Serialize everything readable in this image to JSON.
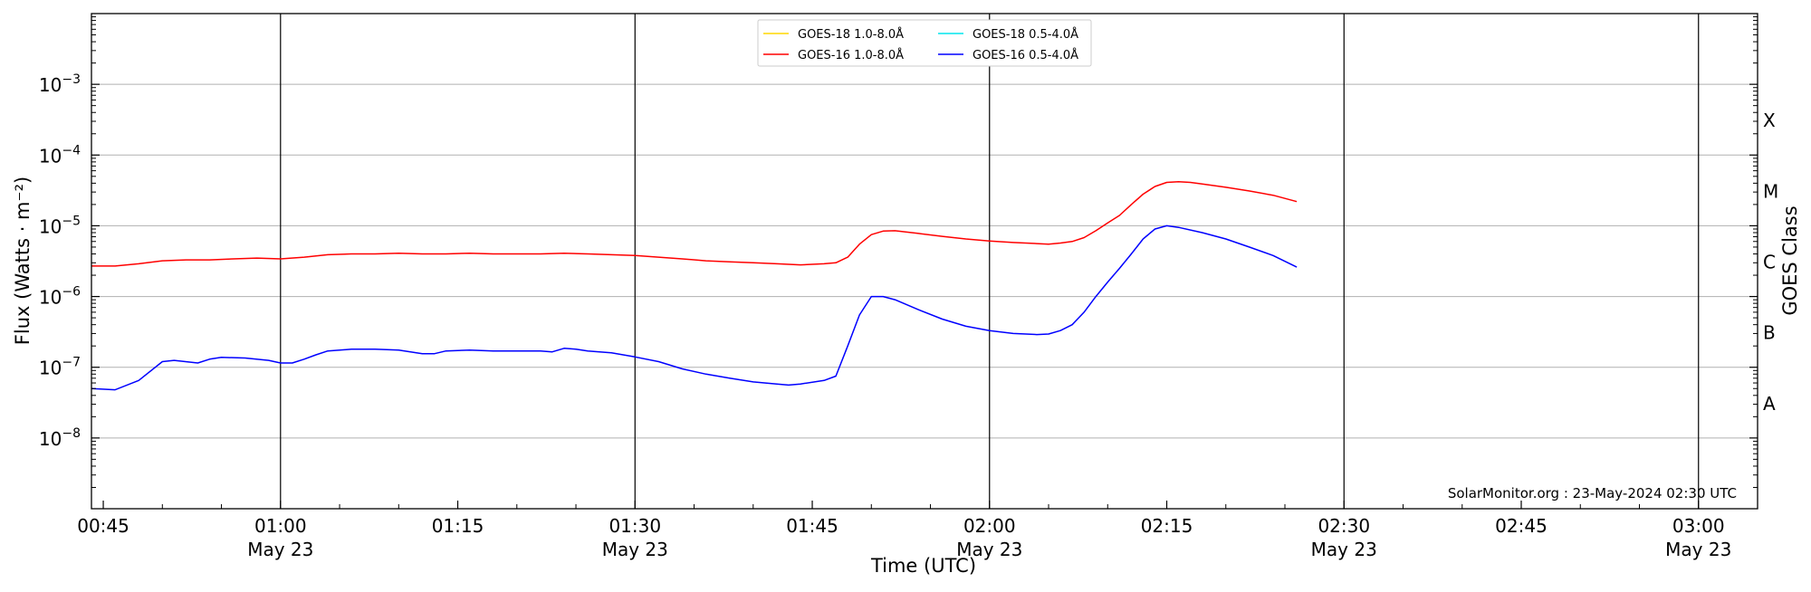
{
  "chart_data": {
    "type": "line",
    "xlabel": "Time (UTC)",
    "ylabel": "Flux (Watts · m⁻²)",
    "right_axis_label": "GOES Class",
    "x_range": [
      "00:44",
      "03:05"
    ],
    "ylim": [
      1e-09,
      0.01
    ],
    "y_scale": "log",
    "y_ticks": [
      {
        "value": 1e-08,
        "base": "10",
        "exp": "−8"
      },
      {
        "value": 1e-07,
        "base": "10",
        "exp": "−7"
      },
      {
        "value": 1e-06,
        "base": "10",
        "exp": "−6"
      },
      {
        "value": 1e-05,
        "base": "10",
        "exp": "−5"
      },
      {
        "value": 0.0001,
        "base": "10",
        "exp": "−4"
      },
      {
        "value": 0.001,
        "base": "10",
        "exp": "−3"
      }
    ],
    "x_ticks": [
      {
        "time": "00:45",
        "label": "00:45",
        "date": ""
      },
      {
        "time": "01:00",
        "label": "01:00",
        "date": "May 23"
      },
      {
        "time": "01:15",
        "label": "01:15",
        "date": ""
      },
      {
        "time": "01:30",
        "label": "01:30",
        "date": "May 23"
      },
      {
        "time": "01:45",
        "label": "01:45",
        "date": ""
      },
      {
        "time": "02:00",
        "label": "02:00",
        "date": "May 23"
      },
      {
        "time": "02:15",
        "label": "02:15",
        "date": ""
      },
      {
        "time": "02:30",
        "label": "02:30",
        "date": "May 23"
      },
      {
        "time": "02:45",
        "label": "02:45",
        "date": ""
      },
      {
        "time": "03:00",
        "label": "03:00",
        "date": "May 23"
      }
    ],
    "vertical_lines": [
      "01:00",
      "01:30",
      "02:00",
      "02:30",
      "03:00"
    ],
    "goes_classes": [
      {
        "label": "A",
        "value": 3.16e-08
      },
      {
        "label": "B",
        "value": 3.16e-07
      },
      {
        "label": "C",
        "value": 3.16e-06
      },
      {
        "label": "M",
        "value": 3.16e-05
      },
      {
        "label": "X",
        "value": 0.000316
      }
    ],
    "grid": true,
    "legend_position": "top-center",
    "series": [
      {
        "name": "GOES-18 1.0-8.0Å",
        "color": "#ffd700",
        "points": []
      },
      {
        "name": "GOES-18 0.5-4.0Å",
        "color": "#00e5ee",
        "points": []
      },
      {
        "name": "GOES-16 1.0-8.0Å",
        "color": "#ff0000",
        "points": [
          [
            "00:44",
            2.7e-06
          ],
          [
            "00:46",
            2.7e-06
          ],
          [
            "00:48",
            2.9e-06
          ],
          [
            "00:50",
            3.2e-06
          ],
          [
            "00:52",
            3.3e-06
          ],
          [
            "00:54",
            3.3e-06
          ],
          [
            "00:56",
            3.4e-06
          ],
          [
            "00:58",
            3.5e-06
          ],
          [
            "01:00",
            3.4e-06
          ],
          [
            "01:02",
            3.6e-06
          ],
          [
            "01:04",
            3.9e-06
          ],
          [
            "01:06",
            4e-06
          ],
          [
            "01:08",
            4e-06
          ],
          [
            "01:10",
            4.1e-06
          ],
          [
            "01:12",
            4e-06
          ],
          [
            "01:14",
            4e-06
          ],
          [
            "01:16",
            4.1e-06
          ],
          [
            "01:18",
            4e-06
          ],
          [
            "01:20",
            4e-06
          ],
          [
            "01:22",
            4e-06
          ],
          [
            "01:24",
            4.1e-06
          ],
          [
            "01:26",
            4e-06
          ],
          [
            "01:28",
            3.9e-06
          ],
          [
            "01:30",
            3.8e-06
          ],
          [
            "01:32",
            3.6e-06
          ],
          [
            "01:34",
            3.4e-06
          ],
          [
            "01:36",
            3.2e-06
          ],
          [
            "01:38",
            3.1e-06
          ],
          [
            "01:40",
            3e-06
          ],
          [
            "01:42",
            2.9e-06
          ],
          [
            "01:44",
            2.8e-06
          ],
          [
            "01:46",
            2.9e-06
          ],
          [
            "01:47",
            3e-06
          ],
          [
            "01:48",
            3.6e-06
          ],
          [
            "01:49",
            5.5e-06
          ],
          [
            "01:50",
            7.5e-06
          ],
          [
            "01:51",
            8.4e-06
          ],
          [
            "01:52",
            8.5e-06
          ],
          [
            "01:54",
            7.8e-06
          ],
          [
            "01:56",
            7.1e-06
          ],
          [
            "01:58",
            6.5e-06
          ],
          [
            "02:00",
            6.1e-06
          ],
          [
            "02:02",
            5.8e-06
          ],
          [
            "02:04",
            5.6e-06
          ],
          [
            "02:05",
            5.5e-06
          ],
          [
            "02:06",
            5.7e-06
          ],
          [
            "02:07",
            6e-06
          ],
          [
            "02:08",
            6.8e-06
          ],
          [
            "02:09",
            8.5e-06
          ],
          [
            "02:10",
            1.1e-05
          ],
          [
            "02:11",
            1.4e-05
          ],
          [
            "02:12",
            2e-05
          ],
          [
            "02:13",
            2.8e-05
          ],
          [
            "02:14",
            3.6e-05
          ],
          [
            "02:15",
            4.1e-05
          ],
          [
            "02:16",
            4.2e-05
          ],
          [
            "02:17",
            4.1e-05
          ],
          [
            "02:18",
            3.9e-05
          ],
          [
            "02:20",
            3.5e-05
          ],
          [
            "02:22",
            3.1e-05
          ],
          [
            "02:24",
            2.7e-05
          ],
          [
            "02:26",
            2.2e-05
          ]
        ]
      },
      {
        "name": "GOES-16 0.5-4.0Å",
        "color": "#0000ff",
        "points": [
          [
            "00:44",
            5e-08
          ],
          [
            "00:46",
            4.8e-08
          ],
          [
            "00:48",
            6.5e-08
          ],
          [
            "00:50",
            1.2e-07
          ],
          [
            "00:51",
            1.25e-07
          ],
          [
            "00:53",
            1.15e-07
          ],
          [
            "00:54",
            1.3e-07
          ],
          [
            "00:55",
            1.38e-07
          ],
          [
            "00:57",
            1.35e-07
          ],
          [
            "00:59",
            1.25e-07
          ],
          [
            "01:00",
            1.15e-07
          ],
          [
            "01:01",
            1.15e-07
          ],
          [
            "01:02",
            1.3e-07
          ],
          [
            "01:03",
            1.5e-07
          ],
          [
            "01:04",
            1.7e-07
          ],
          [
            "01:06",
            1.8e-07
          ],
          [
            "01:08",
            1.8e-07
          ],
          [
            "01:10",
            1.75e-07
          ],
          [
            "01:12",
            1.55e-07
          ],
          [
            "01:13",
            1.55e-07
          ],
          [
            "01:14",
            1.7e-07
          ],
          [
            "01:16",
            1.75e-07
          ],
          [
            "01:18",
            1.7e-07
          ],
          [
            "01:20",
            1.7e-07
          ],
          [
            "01:22",
            1.7e-07
          ],
          [
            "01:23",
            1.65e-07
          ],
          [
            "01:24",
            1.85e-07
          ],
          [
            "01:25",
            1.8e-07
          ],
          [
            "01:26",
            1.7e-07
          ],
          [
            "01:28",
            1.6e-07
          ],
          [
            "01:30",
            1.4e-07
          ],
          [
            "01:32",
            1.2e-07
          ],
          [
            "01:34",
            9.5e-08
          ],
          [
            "01:36",
            8e-08
          ],
          [
            "01:38",
            7e-08
          ],
          [
            "01:40",
            6.2e-08
          ],
          [
            "01:42",
            5.8e-08
          ],
          [
            "01:43",
            5.6e-08
          ],
          [
            "01:44",
            5.8e-08
          ],
          [
            "01:46",
            6.5e-08
          ],
          [
            "01:47",
            7.5e-08
          ],
          [
            "01:48",
            2e-07
          ],
          [
            "01:49",
            5.5e-07
          ],
          [
            "01:50",
            1e-06
          ],
          [
            "01:51",
            1e-06
          ],
          [
            "01:52",
            9e-07
          ],
          [
            "01:54",
            6.5e-07
          ],
          [
            "01:56",
            4.8e-07
          ],
          [
            "01:58",
            3.8e-07
          ],
          [
            "02:00",
            3.3e-07
          ],
          [
            "02:02",
            3e-07
          ],
          [
            "02:04",
            2.9e-07
          ],
          [
            "02:05",
            2.95e-07
          ],
          [
            "02:06",
            3.3e-07
          ],
          [
            "02:07",
            4e-07
          ],
          [
            "02:08",
            6e-07
          ],
          [
            "02:09",
            1e-06
          ],
          [
            "02:10",
            1.6e-06
          ],
          [
            "02:11",
            2.5e-06
          ],
          [
            "02:12",
            4e-06
          ],
          [
            "02:13",
            6.5e-06
          ],
          [
            "02:14",
            9e-06
          ],
          [
            "02:15",
            1e-05
          ],
          [
            "02:16",
            9.5e-06
          ],
          [
            "02:18",
            8e-06
          ],
          [
            "02:20",
            6.5e-06
          ],
          [
            "02:22",
            5e-06
          ],
          [
            "02:24",
            3.8e-06
          ],
          [
            "02:26",
            2.6e-06
          ]
        ]
      }
    ],
    "credit": "SolarMonitor.org : 23-May-2024 02:30 UTC"
  }
}
